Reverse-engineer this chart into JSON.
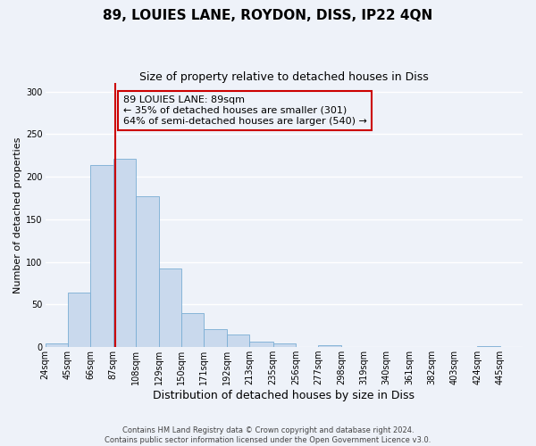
{
  "title": "89, LOUIES LANE, ROYDON, DISS, IP22 4QN",
  "subtitle": "Size of property relative to detached houses in Diss",
  "xlabel": "Distribution of detached houses by size in Diss",
  "ylabel": "Number of detached properties",
  "bar_color": "#c9d9ed",
  "bar_edgecolor": "#7aadd4",
  "bin_labels": [
    "24sqm",
    "45sqm",
    "66sqm",
    "87sqm",
    "108sqm",
    "129sqm",
    "150sqm",
    "171sqm",
    "192sqm",
    "213sqm",
    "235sqm",
    "256sqm",
    "277sqm",
    "298sqm",
    "319sqm",
    "340sqm",
    "361sqm",
    "382sqm",
    "403sqm",
    "424sqm",
    "445sqm"
  ],
  "bin_edges": [
    24,
    45,
    66,
    87,
    108,
    129,
    150,
    171,
    192,
    213,
    235,
    256,
    277,
    298,
    319,
    340,
    361,
    382,
    403,
    424,
    445,
    466
  ],
  "bar_heights": [
    4,
    64,
    214,
    221,
    177,
    92,
    40,
    21,
    15,
    6,
    4,
    0,
    2,
    0,
    0,
    0,
    0,
    0,
    0,
    1,
    0
  ],
  "ylim": [
    0,
    310
  ],
  "yticks": [
    0,
    50,
    100,
    150,
    200,
    250,
    300
  ],
  "property_size": 89,
  "vline_color": "#cc0000",
  "annotation_text": "89 LOUIES LANE: 89sqm\n← 35% of detached houses are smaller (301)\n64% of semi-detached houses are larger (540) →",
  "annotation_box_edgecolor": "#cc0000",
  "footer_text": "Contains HM Land Registry data © Crown copyright and database right 2024.\nContains public sector information licensed under the Open Government Licence v3.0.",
  "background_color": "#eef2f9",
  "grid_color": "#ffffff",
  "title_fontsize": 11,
  "subtitle_fontsize": 9,
  "xlabel_fontsize": 9,
  "ylabel_fontsize": 8,
  "tick_fontsize": 7,
  "annotation_fontsize": 8,
  "footer_fontsize": 6
}
